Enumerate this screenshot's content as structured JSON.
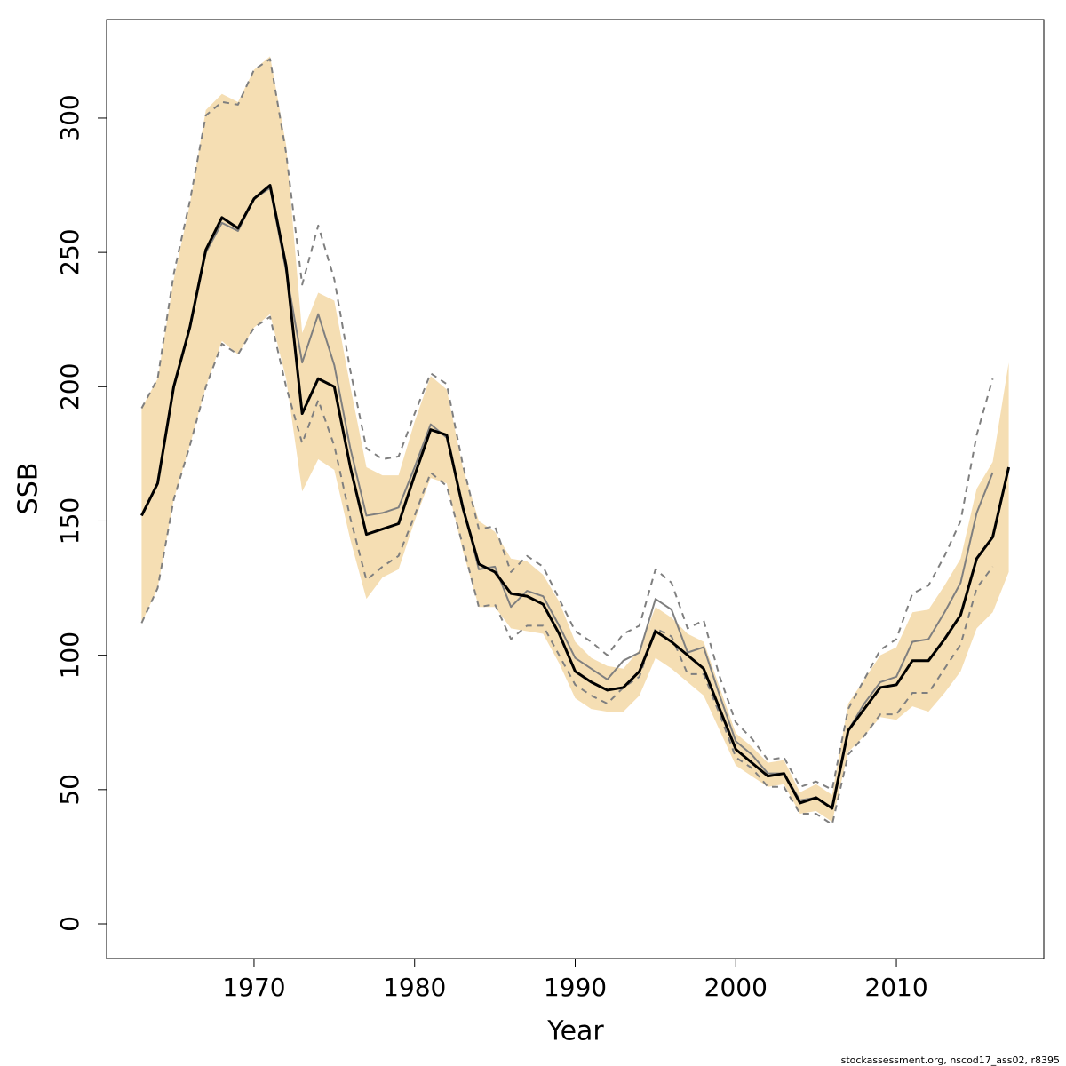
{
  "chart_data": {
    "type": "line",
    "x_label": "Year",
    "y_label": "SSB",
    "footnote": "stockassessment.org, nscod17_ass02, r8395",
    "x": [
      1963,
      1964,
      1965,
      1966,
      1967,
      1968,
      1969,
      1970,
      1971,
      1972,
      1973,
      1974,
      1975,
      1976,
      1977,
      1978,
      1979,
      1980,
      1981,
      1982,
      1983,
      1984,
      1985,
      1986,
      1987,
      1988,
      1989,
      1990,
      1991,
      1992,
      1993,
      1994,
      1995,
      1996,
      1997,
      1998,
      1999,
      2000,
      2001,
      2002,
      2003,
      2004,
      2005,
      2006,
      2007,
      2008,
      2009,
      2010,
      2011,
      2012,
      2013,
      2014,
      2015,
      2016,
      2017
    ],
    "band": {
      "color": "#f5deb3",
      "upper": [
        192,
        203,
        240,
        268,
        303,
        309,
        306,
        318,
        323,
        290,
        220,
        235,
        232,
        200,
        170,
        167,
        167,
        187,
        204,
        199,
        170,
        150,
        146,
        136,
        135,
        130,
        120,
        105,
        99,
        96,
        95,
        102,
        118,
        114,
        108,
        105,
        88,
        71,
        66,
        60,
        61,
        49,
        52,
        48,
        82,
        91,
        100,
        103,
        116,
        117,
        126,
        136,
        162,
        172,
        209
      ],
      "lower": [
        112,
        125,
        158,
        178,
        200,
        217,
        212,
        222,
        227,
        203,
        161,
        173,
        169,
        143,
        121,
        129,
        132,
        150,
        166,
        164,
        139,
        118,
        118,
        110,
        109,
        108,
        97,
        84,
        80,
        79,
        79,
        85,
        99,
        95,
        90,
        85,
        72,
        59,
        55,
        51,
        52,
        41,
        42,
        38,
        64,
        70,
        77,
        76,
        81,
        79,
        86,
        94,
        110,
        116,
        131
      ]
    },
    "series": [
      {
        "color": "#7f7f7f",
        "width": 2,
        "dash": true,
        "values": [
          192,
          203,
          242,
          269,
          301,
          306,
          305,
          318,
          322,
          287,
          238,
          260,
          240,
          206,
          177,
          173,
          174,
          190,
          205,
          201,
          171,
          147,
          148,
          131,
          137,
          133,
          121,
          109,
          105,
          100,
          108,
          111,
          132,
          127,
          110,
          113,
          92,
          75,
          69,
          61,
          62,
          51,
          53,
          50,
          80,
          91,
          102,
          106,
          123,
          126,
          137,
          150,
          182,
          203,
          null
        ]
      },
      {
        "color": "#7f7f7f",
        "width": 2,
        "dash": true,
        "values": [
          112,
          125,
          158,
          178,
          200,
          216,
          212,
          222,
          226,
          200,
          179,
          195,
          178,
          151,
          128,
          133,
          137,
          152,
          168,
          163,
          141,
          118,
          119,
          106,
          111,
          111,
          100,
          89,
          85,
          82,
          88,
          92,
          110,
          107,
          93,
          93,
          78,
          62,
          58,
          51,
          51,
          41,
          41,
          37,
          63,
          70,
          78,
          78,
          86,
          86,
          95,
          104,
          125,
          133,
          null
        ]
      },
      {
        "color": "#7f7f7f",
        "width": 2,
        "dash": false,
        "values": [
          152,
          164,
          200,
          222,
          250,
          261,
          258,
          270,
          274,
          243,
          209,
          227,
          208,
          177,
          152,
          153,
          155,
          170,
          186,
          181,
          156,
          132,
          133,
          118,
          124,
          122,
          111,
          99,
          95,
          91,
          98,
          101,
          121,
          117,
          101,
          103,
          85,
          68,
          63,
          56,
          56,
          46,
          47,
          43,
          72,
          82,
          90,
          92,
          105,
          106,
          116,
          127,
          153,
          168,
          null
        ]
      },
      {
        "color": "#000000",
        "width": 3,
        "dash": false,
        "values": [
          152,
          164,
          200,
          222,
          251,
          263,
          259,
          270,
          275,
          245,
          190,
          203,
          200,
          170,
          145,
          147,
          149,
          167,
          184,
          182,
          155,
          134,
          131,
          123,
          122,
          119,
          108,
          94,
          90,
          87,
          88,
          94,
          109,
          105,
          100,
          95,
          80,
          65,
          60,
          55,
          56,
          45,
          47,
          43,
          72,
          80,
          88,
          89,
          98,
          98,
          106,
          115,
          136,
          144,
          170
        ]
      }
    ],
    "xlim": [
      1960.82,
      2019.18
    ],
    "ylim": [
      -12.9,
      336.7
    ],
    "xticks": [
      1970,
      1980,
      1990,
      2000,
      2010
    ],
    "yticks": [
      0,
      50,
      100,
      150,
      200,
      250,
      300
    ]
  }
}
